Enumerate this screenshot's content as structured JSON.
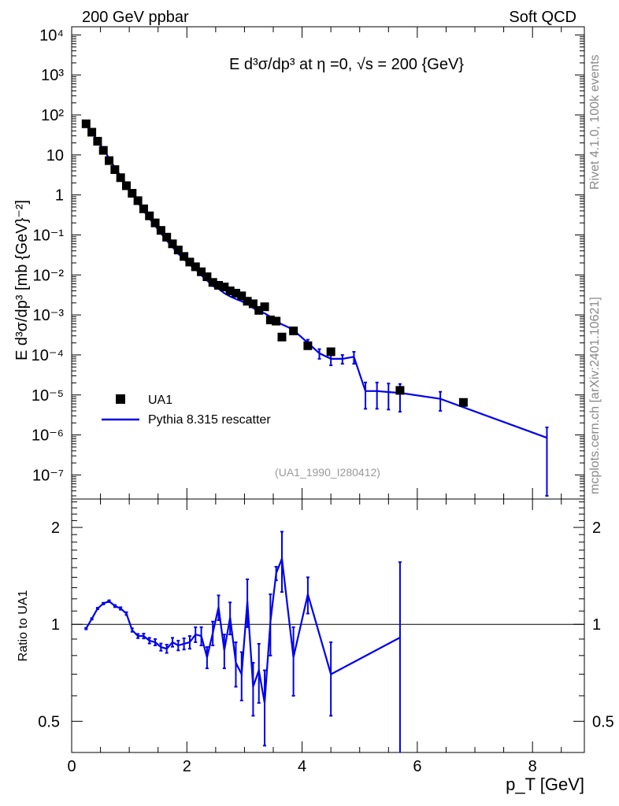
{
  "header": {
    "left": "200 GeV ppbar",
    "right": "Soft QCD"
  },
  "side_labels": {
    "rivet": "Rivet 4.1.0,  100k events",
    "mcplots": "mcplots.cern.ch [arXiv:2401.10621]"
  },
  "chart_data": [
    {
      "type": "scatter",
      "panel": "main",
      "title": "E  d³σ/dp³ at η =0, √s = 200 {GeV}",
      "ylabel": "E d³σ/dp³ [mb {GeV}⁻²]",
      "yscale": "log",
      "xlim": [
        0,
        8.9
      ],
      "ylim": [
        2.5e-08,
        16000.0
      ],
      "ytick_labels": [
        "10⁴",
        "10³",
        "10²",
        "10",
        "1",
        "10⁻¹",
        "10⁻²",
        "10⁻³",
        "10⁻⁴",
        "10⁻⁵",
        "10⁻⁶",
        "10⁻⁷"
      ],
      "ytick_values": [
        10000.0,
        1000.0,
        100.0,
        10,
        1,
        0.1,
        0.01,
        0.001,
        0.0001,
        1e-05,
        1e-06,
        1e-07
      ],
      "watermark": "(UA1_1990_I280412)",
      "legend": {
        "placement": "lower-left",
        "data_label": "UA1",
        "mc_label": "Pythia 8.315 rescatter"
      },
      "series": [
        {
          "name": "UA1",
          "style": "markers",
          "x": [
            0.25,
            0.35,
            0.45,
            0.55,
            0.65,
            0.75,
            0.85,
            0.95,
            1.05,
            1.15,
            1.25,
            1.35,
            1.45,
            1.55,
            1.65,
            1.75,
            1.85,
            1.95,
            2.05,
            2.15,
            2.25,
            2.35,
            2.45,
            2.55,
            2.65,
            2.75,
            2.85,
            2.95,
            3.05,
            3.15,
            3.25,
            3.35,
            3.45,
            3.55,
            3.65,
            3.85,
            4.1,
            4.5,
            5.7,
            6.8
          ],
          "y": [
            60,
            37,
            22,
            13,
            7.2,
            4.3,
            2.7,
            1.7,
            1.1,
            0.72,
            0.45,
            0.3,
            0.2,
            0.13,
            0.088,
            0.06,
            0.042,
            0.029,
            0.021,
            0.016,
            0.012,
            0.009,
            0.0065,
            0.0055,
            0.005,
            0.004,
            0.0035,
            0.003,
            0.0022,
            0.0019,
            0.0013,
            0.0016,
            0.00075,
            0.0007,
            0.00028,
            0.0004,
            0.00017,
            0.00012,
            1.3e-05,
            6.5e-06
          ]
        },
        {
          "name": "Pythia 8.315 rescatter",
          "style": "line",
          "color": "#0000ee",
          "x": [
            0.25,
            0.35,
            0.45,
            0.55,
            0.65,
            0.75,
            0.85,
            0.95,
            1.05,
            1.15,
            1.25,
            1.35,
            1.45,
            1.55,
            1.65,
            1.75,
            1.85,
            1.95,
            2.05,
            2.15,
            2.25,
            2.35,
            2.45,
            2.55,
            2.65,
            2.75,
            2.85,
            2.95,
            3.05,
            3.15,
            3.25,
            3.35,
            3.45,
            3.55,
            3.65,
            3.75,
            3.85,
            4.1,
            4.3,
            4.5,
            4.7,
            4.9,
            5.1,
            5.3,
            5.5,
            5.7,
            6.4,
            8.25
          ],
          "y": [
            58,
            37,
            23,
            14,
            8.2,
            4.8,
            2.95,
            1.8,
            1.05,
            0.65,
            0.4,
            0.26,
            0.17,
            0.11,
            0.072,
            0.05,
            0.034,
            0.025,
            0.018,
            0.014,
            0.0098,
            0.0073,
            0.0053,
            0.0045,
            0.0035,
            0.0029,
            0.0025,
            0.0022,
            0.0019,
            0.0015,
            0.0012,
            0.0011,
            0.0009,
            0.0007,
            0.00058,
            0.0005,
            0.00042,
            0.0002,
            0.00011,
            8e-05,
            8e-05,
            9e-05,
            1.25e-05,
            1.25e-05,
            1.18e-05,
            1.13e-05,
            8e-06,
            8.5e-07
          ],
          "err_lo": [
            0,
            0,
            0,
            0,
            0,
            0,
            0,
            0,
            0,
            0,
            0,
            0,
            0,
            0,
            0,
            0,
            0,
            0,
            0,
            0,
            0,
            0,
            0,
            0,
            0,
            0,
            0,
            0,
            0,
            0,
            0,
            0,
            0,
            0,
            0,
            0,
            0,
            4e-05,
            3e-05,
            2.5e-05,
            2e-05,
            3e-05,
            8e-06,
            8e-06,
            7.5e-06,
            7.5e-06,
            4e-06,
            8.2e-07
          ],
          "err_hi": [
            0,
            0,
            0,
            0,
            0,
            0,
            0,
            0,
            0,
            0,
            0,
            0,
            0,
            0,
            0,
            0,
            0,
            0,
            0,
            0,
            0,
            0,
            0,
            0,
            0,
            0,
            0,
            0,
            0,
            0,
            0,
            0,
            0,
            0,
            0,
            0,
            0,
            4e-05,
            3e-05,
            2.5e-05,
            2e-05,
            3e-05,
            8e-06,
            8e-06,
            7.5e-06,
            7.5e-06,
            4e-06,
            7e-07
          ]
        }
      ]
    },
    {
      "type": "line",
      "panel": "ratio",
      "ylabel": "Ratio to UA1",
      "xlabel": "p_T [GeV]",
      "yscale": "log",
      "xlim": [
        0,
        8.9
      ],
      "ylim": [
        0.4,
        2.45
      ],
      "xticks": [
        0,
        2,
        4,
        6,
        8
      ],
      "xtick_labels": [
        "0",
        "2",
        "4",
        "6",
        "8"
      ],
      "ytick_values": [
        2,
        1,
        0.5
      ],
      "ytick_labels": [
        "2",
        "1",
        "0.5"
      ],
      "reference_line": 1,
      "series": [
        {
          "name": "Pythia 8.315 rescatter",
          "color": "#0000ee",
          "x": [
            0.25,
            0.35,
            0.45,
            0.55,
            0.65,
            0.75,
            0.85,
            0.95,
            1.05,
            1.15,
            1.25,
            1.35,
            1.45,
            1.55,
            1.65,
            1.75,
            1.85,
            1.95,
            2.05,
            2.15,
            2.25,
            2.35,
            2.45,
            2.55,
            2.65,
            2.75,
            2.85,
            2.95,
            3.05,
            3.15,
            3.25,
            3.35,
            3.45,
            3.55,
            3.65,
            3.85,
            4.1,
            4.5,
            5.7
          ],
          "y": [
            0.97,
            1.04,
            1.12,
            1.16,
            1.18,
            1.14,
            1.12,
            1.08,
            0.96,
            0.92,
            0.92,
            0.89,
            0.88,
            0.85,
            0.84,
            0.88,
            0.86,
            0.87,
            0.88,
            0.93,
            0.92,
            0.79,
            0.94,
            1.13,
            0.83,
            1.05,
            0.76,
            0.7,
            1.18,
            0.64,
            0.72,
            0.57,
            1.02,
            1.44,
            1.6,
            0.79,
            1.24,
            0.7,
            0.91
          ],
          "err": [
            0.005,
            0.005,
            0.006,
            0.007,
            0.008,
            0.009,
            0.01,
            0.011,
            0.012,
            0.014,
            0.016,
            0.018,
            0.02,
            0.022,
            0.025,
            0.028,
            0.03,
            0.035,
            0.04,
            0.05,
            0.06,
            0.06,
            0.08,
            0.1,
            0.1,
            0.12,
            0.12,
            0.12,
            0.2,
            0.12,
            0.15,
            0.15,
            0.22,
            0.07,
            0.34,
            0.19,
            0.16,
            0.18,
            0.65
          ]
        }
      ]
    }
  ]
}
